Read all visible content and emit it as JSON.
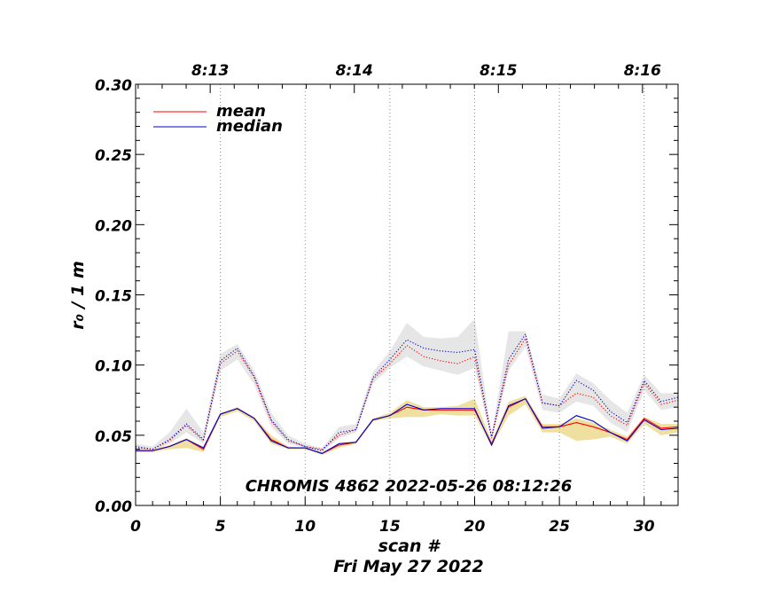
{
  "chart_data": {
    "type": "line",
    "title": "",
    "annotation": "CHROMIS 4862 2022-05-26 08:12:26",
    "xlabel": "scan #",
    "xlabel2": "Fri May 27 2022",
    "ylabel": "r₀ / 1 m",
    "xlim": [
      0,
      32
    ],
    "ylim": [
      0,
      0.3
    ],
    "xticks": [
      0,
      5,
      10,
      15,
      20,
      25,
      30
    ],
    "xtick_labels": [
      "0",
      "5",
      "10",
      "15",
      "20",
      "25",
      "30"
    ],
    "yticks": [
      0,
      0.05,
      0.1,
      0.15,
      0.2,
      0.25,
      0.3
    ],
    "ytick_labels": [
      "0.00",
      "0.05",
      "0.10",
      "0.15",
      "0.20",
      "0.25",
      "0.30"
    ],
    "top_axis": {
      "ticks": [
        4.4,
        12.9,
        21.4,
        29.9
      ],
      "labels": [
        "8:13",
        "8:14",
        "8:15",
        "8:16"
      ]
    },
    "vertical_gridlines_x": [
      5,
      10,
      15,
      20,
      25,
      30
    ],
    "legend": {
      "position": "top-left",
      "entries": [
        {
          "label": "mean",
          "color": "#ff0000"
        },
        {
          "label": "median",
          "color": "#0000cc"
        }
      ]
    },
    "x": [
      0,
      1,
      2,
      3,
      4,
      5,
      6,
      7,
      8,
      9,
      10,
      11,
      12,
      13,
      14,
      15,
      16,
      17,
      18,
      19,
      20,
      21,
      22,
      23,
      24,
      25,
      26,
      27,
      28,
      29,
      30,
      31,
      32
    ],
    "series": [
      {
        "name": "mean",
        "style": "solid",
        "color": "#ff0000",
        "values": [
          0.039,
          0.039,
          0.042,
          0.047,
          0.04,
          0.065,
          0.069,
          0.062,
          0.047,
          0.041,
          0.041,
          0.037,
          0.043,
          0.045,
          0.061,
          0.064,
          0.07,
          0.068,
          0.068,
          0.068,
          0.068,
          0.044,
          0.07,
          0.076,
          0.056,
          0.056,
          0.059,
          0.056,
          0.052,
          0.047,
          0.062,
          0.055,
          0.056
        ]
      },
      {
        "name": "median",
        "style": "solid",
        "color": "#0000cc",
        "values": [
          0.039,
          0.039,
          0.042,
          0.047,
          0.041,
          0.065,
          0.069,
          0.062,
          0.046,
          0.041,
          0.041,
          0.037,
          0.044,
          0.045,
          0.061,
          0.064,
          0.072,
          0.068,
          0.069,
          0.069,
          0.069,
          0.043,
          0.071,
          0.076,
          0.055,
          0.056,
          0.064,
          0.06,
          0.052,
          0.046,
          0.061,
          0.054,
          0.055
        ]
      },
      {
        "name": "mean_upper",
        "style": "dotted",
        "color": "#ff0000",
        "values": [
          0.041,
          0.04,
          0.046,
          0.057,
          0.046,
          0.101,
          0.11,
          0.091,
          0.06,
          0.046,
          0.042,
          0.04,
          0.05,
          0.054,
          0.09,
          0.101,
          0.114,
          0.106,
          0.103,
          0.101,
          0.106,
          0.048,
          0.1,
          0.119,
          0.073,
          0.071,
          0.08,
          0.077,
          0.064,
          0.057,
          0.087,
          0.072,
          0.075
        ]
      },
      {
        "name": "median_upper",
        "style": "dotted",
        "color": "#0000cc",
        "values": [
          0.042,
          0.04,
          0.047,
          0.058,
          0.047,
          0.103,
          0.112,
          0.092,
          0.061,
          0.047,
          0.042,
          0.039,
          0.052,
          0.054,
          0.091,
          0.104,
          0.118,
          0.112,
          0.11,
          0.109,
          0.111,
          0.049,
          0.104,
          0.122,
          0.073,
          0.071,
          0.089,
          0.082,
          0.067,
          0.059,
          0.089,
          0.074,
          0.077
        ]
      }
    ],
    "bands": [
      {
        "color": "#e6e6e6",
        "upper": [
          0.044,
          0.042,
          0.052,
          0.069,
          0.052,
          0.108,
          0.115,
          0.096,
          0.066,
          0.05,
          0.044,
          0.041,
          0.056,
          0.058,
          0.095,
          0.11,
          0.13,
          0.12,
          0.119,
          0.12,
          0.133,
          0.05,
          0.124,
          0.124,
          0.079,
          0.076,
          0.094,
          0.087,
          0.075,
          0.066,
          0.093,
          0.08,
          0.08
        ],
        "lower": [
          0.04,
          0.039,
          0.044,
          0.052,
          0.044,
          0.096,
          0.104,
          0.086,
          0.056,
          0.044,
          0.041,
          0.038,
          0.048,
          0.052,
          0.087,
          0.098,
          0.106,
          0.099,
          0.096,
          0.093,
          0.098,
          0.046,
          0.096,
          0.113,
          0.068,
          0.066,
          0.074,
          0.071,
          0.059,
          0.052,
          0.082,
          0.068,
          0.07
        ]
      },
      {
        "color": "#efe0a0",
        "upper": [
          0.04,
          0.04,
          0.043,
          0.048,
          0.042,
          0.066,
          0.07,
          0.063,
          0.05,
          0.042,
          0.041,
          0.038,
          0.044,
          0.046,
          0.062,
          0.066,
          0.075,
          0.07,
          0.07,
          0.071,
          0.076,
          0.046,
          0.074,
          0.078,
          0.058,
          0.058,
          0.062,
          0.059,
          0.054,
          0.049,
          0.063,
          0.058,
          0.058
        ],
        "lower": [
          0.038,
          0.038,
          0.04,
          0.041,
          0.038,
          0.063,
          0.067,
          0.06,
          0.044,
          0.04,
          0.04,
          0.036,
          0.041,
          0.044,
          0.06,
          0.062,
          0.063,
          0.063,
          0.065,
          0.064,
          0.064,
          0.042,
          0.064,
          0.072,
          0.052,
          0.052,
          0.046,
          0.047,
          0.049,
          0.044,
          0.058,
          0.05,
          0.052
        ]
      }
    ]
  }
}
